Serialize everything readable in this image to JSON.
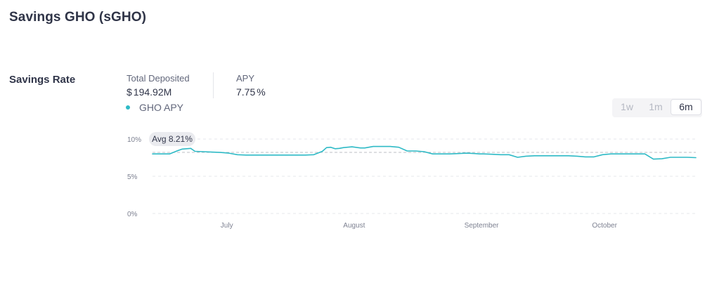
{
  "header": {
    "title": "Savings GHO (sGHO)"
  },
  "section": {
    "label": "Savings Rate"
  },
  "stats": {
    "total_deposited_label": "Total Deposited",
    "total_deposited_currency": "$",
    "total_deposited_value": "194.92M",
    "apy_label": "APY",
    "apy_value": "7.75",
    "apy_unit": "%"
  },
  "legend": {
    "label": "GHO APY",
    "color": "#2ebac6"
  },
  "range": {
    "options": [
      "1w",
      "1m",
      "6m"
    ],
    "selected": "6m"
  },
  "chart_data": {
    "type": "line",
    "series": [
      {
        "name": "GHO APY",
        "color": "#2ebac6",
        "x": [
          0,
          4,
          8,
          12,
          14,
          16,
          18,
          20,
          24,
          28,
          32,
          36,
          40,
          44,
          48,
          52,
          56,
          60,
          64,
          68,
          72,
          76,
          80,
          82,
          84,
          86,
          88,
          90,
          94,
          98,
          100,
          104,
          108,
          112,
          116,
          120,
          124,
          128,
          132,
          136,
          140,
          144,
          148,
          152,
          154,
          156,
          160,
          164,
          168,
          172,
          176,
          180,
          184,
          188,
          192,
          196,
          200,
          204,
          208,
          212,
          216,
          220,
          222,
          224,
          228,
          232,
          236,
          240,
          244,
          248,
          252,
          256
        ],
        "values": [
          8.0,
          8.0,
          8.0,
          8.45,
          8.65,
          8.7,
          8.75,
          8.35,
          8.3,
          8.25,
          8.2,
          8.1,
          7.9,
          7.85,
          7.85,
          7.85,
          7.85,
          7.85,
          7.85,
          7.85,
          7.85,
          7.9,
          8.35,
          8.85,
          8.9,
          8.7,
          8.75,
          8.85,
          8.95,
          8.8,
          8.8,
          9.0,
          9.0,
          9.0,
          8.9,
          8.4,
          8.4,
          8.3,
          8.0,
          8.0,
          8.0,
          8.05,
          8.1,
          8.05,
          8.0,
          8.0,
          7.95,
          7.9,
          7.9,
          7.55,
          7.7,
          7.75,
          7.75,
          7.75,
          7.75,
          7.75,
          7.7,
          7.6,
          7.6,
          7.9,
          8.0,
          8.0,
          8.0,
          8.0,
          8.0,
          8.0,
          7.3,
          7.35,
          7.55,
          7.55,
          7.55,
          7.5
        ]
      }
    ],
    "average": {
      "value": 8.21,
      "label": "Avg 8.21%"
    },
    "ylim": [
      0,
      10
    ],
    "xlim": [
      0,
      256
    ],
    "yticks": [
      {
        "value": 0,
        "label": "0%"
      },
      {
        "value": 5,
        "label": "5%"
      },
      {
        "value": 10,
        "label": "10%"
      }
    ],
    "xticks": [
      {
        "value": 35,
        "label": "July"
      },
      {
        "value": 95,
        "label": "August"
      },
      {
        "value": 155,
        "label": "September"
      },
      {
        "value": 213,
        "label": "October"
      }
    ],
    "title": "",
    "xlabel": "",
    "ylabel": "",
    "grid": true,
    "colors": {
      "grid": "#e6e7eb",
      "avg_line": "#bdbfc6",
      "tick_text": "#7d8191",
      "avg_badge_bg": "#eaebef",
      "avg_badge_text": "#303549"
    }
  }
}
